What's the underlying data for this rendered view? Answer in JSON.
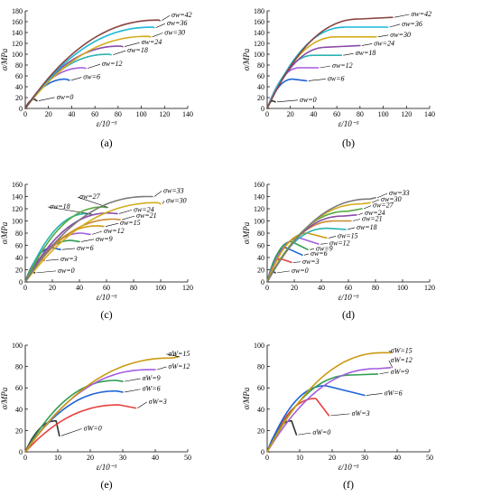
{
  "palette": {
    "0": "#333333",
    "3": "#e8413c",
    "6": "#1f64d6",
    "9": "#2e9e4f",
    "12": "#a35ce0",
    "15": "#cc9a10",
    "18": "#2bb3b3",
    "21": "#c98a2e",
    "24": "#8b4aa8",
    "27": "#55a93d",
    "30": "#d4ad1a",
    "33": "#7a7a7a",
    "36": "#1ab8d8",
    "42": "#8a4440"
  },
  "chart_data": [
    {
      "type": "line",
      "panel": "(a)",
      "xlabel": "ε/10⁻³",
      "ylabel": "σ/MPa",
      "xlim": [
        0,
        140
      ],
      "ylim": [
        0,
        180
      ],
      "xticks": [
        0,
        20,
        40,
        60,
        80,
        100,
        120,
        140
      ],
      "yticks": [
        0,
        20,
        40,
        60,
        80,
        100,
        120,
        140,
        160,
        180
      ],
      "series": [
        {
          "name": "σw=0",
          "label": "0",
          "peak": [
            8,
            17
          ],
          "end": [
            10,
            14
          ],
          "label_at": [
            27,
            17
          ]
        },
        {
          "name": "σw=6",
          "label": "6",
          "peak": [
            35,
            54
          ],
          "end": [
            38,
            52
          ],
          "label_at": [
            50,
            54
          ]
        },
        {
          "name": "σw=12",
          "label": "12",
          "peak": [
            50,
            75
          ],
          "end": [
            52,
            74
          ],
          "label_at": [
            66,
            78
          ]
        },
        {
          "name": "σw=18",
          "label": "18",
          "peak": [
            72,
            100
          ],
          "end": [
            74,
            99
          ],
          "label_at": [
            88,
            103
          ]
        },
        {
          "name": "σw=24",
          "label": "24",
          "peak": [
            82,
            115
          ],
          "end": [
            84,
            114
          ],
          "label_at": [
            100,
            118
          ]
        },
        {
          "name": "σw=30",
          "label": "30",
          "peak": [
            106,
            133
          ],
          "end": [
            108,
            132
          ],
          "label_at": [
            120,
            136
          ]
        },
        {
          "name": "σw=36",
          "label": "36",
          "peak": [
            110,
            150
          ],
          "end": [
            111,
            149
          ],
          "label_at": [
            122,
            153
          ]
        },
        {
          "name": "σw=42",
          "label": "42",
          "peak": [
            115,
            163
          ],
          "end": [
            116,
            162
          ],
          "label_at": [
            126,
            168
          ]
        }
      ]
    },
    {
      "type": "line",
      "panel": "(b)",
      "xlabel": "ε/10⁻³",
      "ylabel": "σ/MPa",
      "xlim": [
        0,
        140
      ],
      "ylim": [
        0,
        180
      ],
      "xticks": [
        0,
        20,
        40,
        60,
        80,
        100,
        120,
        140
      ],
      "yticks": [
        0,
        20,
        40,
        60,
        80,
        100,
        120,
        140,
        160,
        180
      ],
      "series": [
        {
          "name": "σw=0",
          "label": "0",
          "peak": [
            5,
            14
          ],
          "end": [
            7,
            12
          ],
          "label_at": [
            28,
            12
          ]
        },
        {
          "name": "σw=6",
          "label": "6",
          "peak": [
            22,
            54
          ],
          "end": [
            34,
            51
          ],
          "label_at": [
            52,
            51
          ]
        },
        {
          "name": "σw=12",
          "label": "12",
          "peak": [
            28,
            75
          ],
          "end": [
            44,
            75
          ],
          "label_at": [
            56,
            75
          ]
        },
        {
          "name": "σw=18",
          "label": "18",
          "peak": [
            40,
            98
          ],
          "end": [
            64,
            98
          ],
          "label_at": [
            76,
            98
          ]
        },
        {
          "name": "σw=24",
          "label": "24",
          "peak": [
            52,
            113
          ],
          "end": [
            80,
            116
          ],
          "label_at": [
            92,
            116
          ]
        },
        {
          "name": "σw=30",
          "label": "30",
          "peak": [
            60,
            132
          ],
          "end": [
            94,
            132
          ],
          "label_at": [
            106,
            132
          ]
        },
        {
          "name": "σw=36",
          "label": "36",
          "peak": [
            68,
            150
          ],
          "end": [
            104,
            150
          ],
          "label_at": [
            116,
            152
          ]
        },
        {
          "name": "σw=42",
          "label": "42",
          "peak": [
            80,
            165
          ],
          "end": [
            108,
            168
          ],
          "label_at": [
            124,
            170
          ]
        }
      ]
    },
    {
      "type": "line",
      "panel": "(c)",
      "xlabel": "ε/10⁻³",
      "ylabel": "σ/MPa",
      "xlim": [
        0,
        120
      ],
      "ylim": [
        0,
        160
      ],
      "xticks": [
        0,
        20,
        40,
        60,
        80,
        100,
        120
      ],
      "yticks": [
        0,
        20,
        40,
        60,
        80,
        100,
        120,
        140,
        160
      ],
      "series": [
        {
          "name": "σw=0",
          "label": "0",
          "peak": [
            5,
            17
          ],
          "end": [
            7,
            15
          ],
          "label_at": [
            24,
            15
          ]
        },
        {
          "name": "σw=3",
          "label": "3",
          "peak": [
            12,
            38
          ],
          "end": [
            14,
            35
          ],
          "label_at": [
            26,
            34
          ]
        },
        {
          "name": "σw=6",
          "label": "6",
          "peak": [
            20,
            56
          ],
          "end": [
            26,
            53
          ],
          "label_at": [
            38,
            52
          ]
        },
        {
          "name": "σw=9",
          "label": "9",
          "peak": [
            34,
            68
          ],
          "end": [
            40,
            66
          ],
          "label_at": [
            52,
            67
          ]
        },
        {
          "name": "σw=12",
          "label": "12",
          "peak": [
            42,
            80
          ],
          "end": [
            48,
            78
          ],
          "label_at": [
            58,
            80
          ]
        },
        {
          "name": "σw=15",
          "label": "15",
          "peak": [
            54,
            92
          ],
          "end": [
            58,
            91
          ],
          "label_at": [
            70,
            93
          ]
        },
        {
          "name": "σw=18",
          "label": "18",
          "peak": [
            46,
            112
          ],
          "end": [
            48,
            111
          ],
          "label_at": [
            18,
            120
          ]
        },
        {
          "name": "σw=21",
          "label": "21",
          "peak": [
            66,
            103
          ],
          "end": [
            70,
            102
          ],
          "label_at": [
            82,
            105
          ]
        },
        {
          "name": "σw=24",
          "label": "24",
          "peak": [
            62,
            113
          ],
          "end": [
            68,
            112
          ],
          "label_at": [
            80,
            115
          ]
        },
        {
          "name": "σw=27",
          "label": "27",
          "peak": [
            58,
            123
          ],
          "end": [
            60,
            122
          ],
          "label_at": [
            40,
            136
          ]
        },
        {
          "name": "σw=30",
          "label": "30",
          "peak": [
            98,
            130
          ],
          "end": [
            100,
            128
          ],
          "label_at": [
            104,
            130
          ]
        },
        {
          "name": "σw=33",
          "label": "33",
          "peak": [
            90,
            140
          ],
          "end": [
            94,
            140
          ],
          "label_at": [
            102,
            146
          ]
        }
      ]
    },
    {
      "type": "line",
      "panel": "(d)",
      "xlabel": "ε/10⁻³",
      "ylabel": "σ/MPa",
      "xlim": [
        0,
        120
      ],
      "ylim": [
        0,
        160
      ],
      "xticks": [
        0,
        20,
        40,
        60,
        80,
        100,
        120
      ],
      "yticks": [
        0,
        20,
        40,
        60,
        80,
        100,
        120,
        140,
        160
      ],
      "series": [
        {
          "name": "σw=0",
          "label": "0",
          "peak": [
            4,
            18
          ],
          "end": [
            6,
            15
          ],
          "label_at": [
            18,
            15
          ]
        },
        {
          "name": "σw=3",
          "label": "3",
          "peak": [
            10,
            38
          ],
          "end": [
            18,
            32
          ],
          "label_at": [
            26,
            30
          ]
        },
        {
          "name": "σw=6",
          "label": "6",
          "peak": [
            14,
            56
          ],
          "end": [
            26,
            44
          ],
          "label_at": [
            32,
            43
          ]
        },
        {
          "name": "σw=9",
          "label": "9",
          "peak": [
            18,
            66
          ],
          "end": [
            30,
            53
          ],
          "label_at": [
            36,
            51
          ]
        },
        {
          "name": "σw=12",
          "label": "12",
          "peak": [
            24,
            72
          ],
          "end": [
            38,
            62
          ],
          "label_at": [
            46,
            60
          ]
        },
        {
          "name": "σw=15",
          "label": "15",
          "peak": [
            30,
            80
          ],
          "end": [
            44,
            72
          ],
          "label_at": [
            52,
            72
          ]
        },
        {
          "name": "σw=18",
          "label": "18",
          "peak": [
            44,
            88
          ],
          "end": [
            58,
            86
          ],
          "label_at": [
            66,
            86
          ]
        },
        {
          "name": "σw=21",
          "label": "21",
          "peak": [
            50,
            100
          ],
          "end": [
            62,
            100
          ],
          "label_at": [
            70,
            100
          ]
        },
        {
          "name": "σw=24",
          "label": "24",
          "peak": [
            56,
            108
          ],
          "end": [
            66,
            110
          ],
          "label_at": [
            72,
            110
          ]
        },
        {
          "name": "σw=27",
          "label": "27",
          "peak": [
            60,
            116
          ],
          "end": [
            70,
            120
          ],
          "label_at": [
            78,
            122
          ]
        },
        {
          "name": "σw=30",
          "label": "30",
          "peak": [
            70,
            128
          ],
          "end": [
            76,
            130
          ],
          "label_at": [
            84,
            132
          ]
        },
        {
          "name": "σw=33",
          "label": "33",
          "peak": [
            76,
            136
          ],
          "end": [
            80,
            138
          ],
          "label_at": [
            90,
            142
          ]
        }
      ]
    },
    {
      "type": "line",
      "panel": "(e)",
      "xlabel": "ε/10⁻³",
      "ylabel": "σ/MPa",
      "xlim": [
        0,
        50
      ],
      "ylim": [
        0,
        100
      ],
      "xticks": [
        0,
        10,
        20,
        30,
        40,
        50
      ],
      "yticks": [
        0,
        20,
        40,
        60,
        80,
        100
      ],
      "series": [
        {
          "name": "σW=0",
          "label": "0",
          "peak": [
            9.5,
            29
          ],
          "end": [
            10.5,
            15
          ],
          "label_at": [
            18,
            20
          ]
        },
        {
          "name": "σW=3",
          "label": "3",
          "peak": [
            29,
            44
          ],
          "end": [
            34,
            41
          ],
          "label_at": [
            38,
            45
          ]
        },
        {
          "name": "σW=6",
          "label": "6",
          "peak": [
            28,
            57
          ],
          "end": [
            30,
            56
          ],
          "label_at": [
            36,
            57
          ]
        },
        {
          "name": "σW=9",
          "label": "9",
          "peak": [
            28,
            67
          ],
          "end": [
            30,
            66
          ],
          "label_at": [
            36,
            67
          ]
        },
        {
          "name": "σW=12",
          "label": "12",
          "peak": [
            38,
            77
          ],
          "end": [
            40,
            77
          ],
          "label_at": [
            44,
            78
          ]
        },
        {
          "name": "σW=15",
          "label": "15",
          "peak": [
            45,
            88
          ],
          "end": [
            47,
            89
          ],
          "label_at": [
            44,
            90
          ]
        }
      ]
    },
    {
      "type": "line",
      "panel": "(f)",
      "xlabel": "ε/10⁻³",
      "ylabel": "σ/MPa",
      "xlim": [
        0,
        50
      ],
      "ylim": [
        0,
        100
      ],
      "xticks": [
        0,
        10,
        20,
        30,
        40,
        50
      ],
      "yticks": [
        0,
        20,
        40,
        60,
        80,
        100
      ],
      "series": [
        {
          "name": "σW=0",
          "label": "0",
          "peak": [
            7.5,
            29
          ],
          "end": [
            9,
            16
          ],
          "label_at": [
            14,
            16
          ]
        },
        {
          "name": "σW=3",
          "label": "3",
          "peak": [
            15,
            50
          ],
          "end": [
            19,
            34
          ],
          "label_at": [
            26,
            34
          ]
        },
        {
          "name": "σW=6",
          "label": "6",
          "peak": [
            18,
            62
          ],
          "end": [
            30,
            53
          ],
          "label_at": [
            36,
            53
          ]
        },
        {
          "name": "σW=9",
          "label": "9",
          "peak": [
            26,
            72
          ],
          "end": [
            34,
            73
          ],
          "label_at": [
            38,
            73
          ]
        },
        {
          "name": "σW=12",
          "label": "12",
          "peak": [
            34,
            78
          ],
          "end": [
            38,
            79
          ],
          "label_at": [
            38,
            84
          ]
        },
        {
          "name": "σW=15",
          "label": "15",
          "peak": [
            36,
            93
          ],
          "end": [
            38,
            93
          ],
          "label_at": [
            38,
            93
          ]
        }
      ]
    }
  ]
}
